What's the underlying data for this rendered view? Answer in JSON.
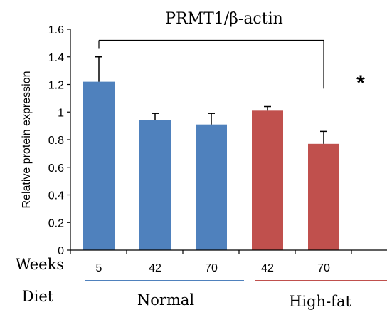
{
  "chart_data": {
    "type": "bar",
    "title": "PRMT1/β-actin",
    "ylabel": "Relative protein expression",
    "xlabel": "",
    "ylim": [
      0,
      1.6
    ],
    "yticks": [
      "0",
      "0.2",
      "0.4",
      "0.6",
      "0.8",
      "1",
      "1.2",
      "1.4",
      "1.6"
    ],
    "categories": [
      "5",
      "42",
      "70",
      "42",
      "70"
    ],
    "values": [
      1.22,
      0.94,
      0.91,
      1.01,
      0.77
    ],
    "error_upper": [
      1.4,
      0.99,
      0.99,
      1.04,
      0.86
    ],
    "groups": [
      "Normal",
      "Normal",
      "Normal",
      "High-fat",
      "High-fat"
    ],
    "group_colors": {
      "Normal": "#4f81bd",
      "High-fat": "#c0504d"
    },
    "grid": false,
    "significance": {
      "from_index": 0,
      "to_index": 4,
      "y": 1.52,
      "marker": "*"
    }
  },
  "rows": {
    "weeks_label": "Weeks",
    "diet_label": "Diet",
    "normal_label": "Normal",
    "highfat_label": "High-fat"
  }
}
